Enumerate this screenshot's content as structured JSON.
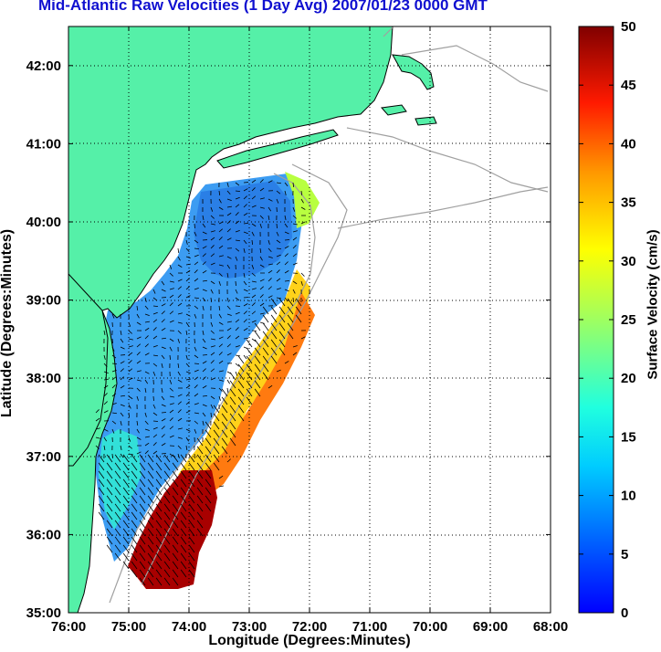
{
  "title": "Mid-Atlantic Raw Velocities (1 Day Avg) 2007/01/23 0000 GMT",
  "x_axis": {
    "label": "Longitude (Degrees:Minutes)",
    "ticks": [
      "76:00",
      "75:00",
      "74:00",
      "73:00",
      "72:00",
      "71:00",
      "70:00",
      "69:00",
      "68:00"
    ]
  },
  "y_axis": {
    "label": "Latitude (Degrees:Minutes)",
    "ticks": [
      "35:00",
      "36:00",
      "37:00",
      "38:00",
      "39:00",
      "40:00",
      "41:00",
      "42:00"
    ]
  },
  "colorbar": {
    "label": "Surface Velocity (cm/s)",
    "ticks": [
      "0",
      "5",
      "10",
      "15",
      "20",
      "25",
      "30",
      "35",
      "40",
      "45",
      "50"
    ],
    "range": [
      0,
      50
    ],
    "colormap": "jet"
  },
  "map_extent": {
    "lon_west": -76,
    "lon_east": -68,
    "lat_south": 35,
    "lat_north": 42.5
  },
  "colors": {
    "land": "#55f0a8",
    "title": "#1010d0",
    "isobath": "#a0a0a0",
    "grid": "#000000"
  }
}
